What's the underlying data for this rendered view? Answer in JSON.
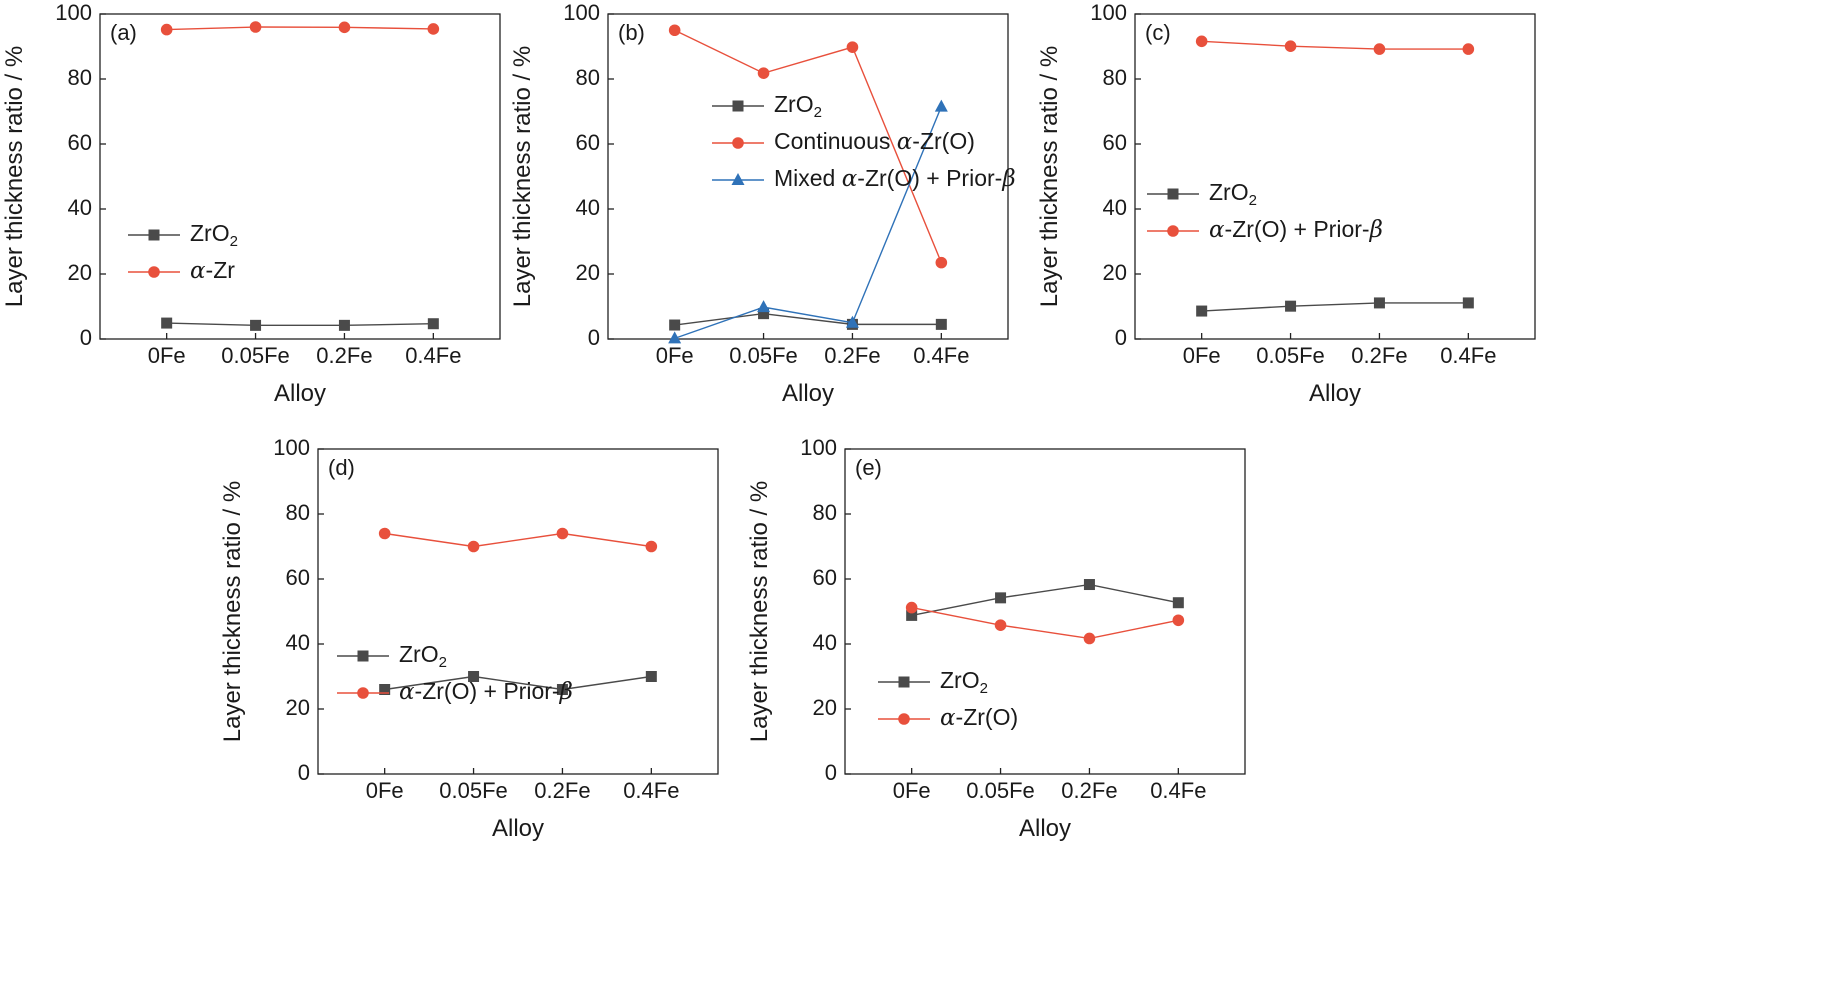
{
  "colors": {
    "zro2": "#4a4a4a",
    "red": "#e8503c",
    "blue": "#2f72b8",
    "axis": "#222222"
  },
  "chart_data": [
    {
      "type": "line",
      "tag": "(a)",
      "xlabel": "Alloy",
      "ylabel": "Layer thickness ratio / %",
      "ylim": [
        0,
        100
      ],
      "yticks": [
        "0",
        "20",
        "40",
        "60",
        "80",
        "100"
      ],
      "categories": [
        "0Fe",
        "0.05Fe",
        "0.2Fe",
        "0.4Fe"
      ],
      "legend_position": "middle-left",
      "series": [
        {
          "name": "ZrO2",
          "label_parts": [
            [
              "t",
              "ZrO"
            ],
            [
              "sub",
              "2"
            ]
          ],
          "color": "#4a4a4a",
          "marker": "square",
          "values": [
            4.9,
            4.2,
            4.2,
            4.7
          ]
        },
        {
          "name": "α-Zr",
          "label_parts": [
            [
              "g",
              "α"
            ],
            [
              "t",
              "-Zr"
            ]
          ],
          "color": "#e8503c",
          "marker": "circle",
          "values": [
            95.2,
            96.0,
            95.9,
            95.4
          ]
        }
      ]
    },
    {
      "type": "line",
      "tag": "(b)",
      "xlabel": "Alloy",
      "ylabel": "Layer thickness ratio / %",
      "ylim": [
        0,
        100
      ],
      "yticks": [
        "0",
        "20",
        "40",
        "60",
        "80",
        "100"
      ],
      "categories": [
        "0Fe",
        "0.05Fe",
        "0.2Fe",
        "0.4Fe"
      ],
      "legend_position": "middle-left",
      "series": [
        {
          "name": "ZrO2",
          "label_parts": [
            [
              "t",
              "ZrO"
            ],
            [
              "sub",
              "2"
            ]
          ],
          "color": "#4a4a4a",
          "marker": "square",
          "values": [
            4.3,
            7.8,
            4.5,
            4.5
          ]
        },
        {
          "name": "Continuous α-Zr(O)",
          "label_parts": [
            [
              "t",
              "Continuous "
            ],
            [
              "g",
              "α"
            ],
            [
              "t",
              "-Zr(O)"
            ]
          ],
          "color": "#e8503c",
          "marker": "circle",
          "values": [
            95.0,
            81.8,
            89.8,
            23.5
          ]
        },
        {
          "name": "Mixed α-Zr(O) + Prior-β",
          "label_parts": [
            [
              "t",
              "Mixed "
            ],
            [
              "g",
              "α"
            ],
            [
              "t",
              "-Zr(O) + Prior-"
            ],
            [
              "g",
              "β"
            ]
          ],
          "color": "#2f72b8",
          "marker": "triangle",
          "values": [
            0.2,
            9.8,
            5.0,
            71.5
          ]
        }
      ]
    },
    {
      "type": "line",
      "tag": "(c)",
      "xlabel": "Alloy",
      "ylabel": "Layer thickness ratio / %",
      "ylim": [
        0,
        100
      ],
      "yticks": [
        "0",
        "20",
        "40",
        "60",
        "80",
        "100"
      ],
      "categories": [
        "0Fe",
        "0.05Fe",
        "0.2Fe",
        "0.4Fe"
      ],
      "legend_position": "middle-left",
      "series": [
        {
          "name": "ZrO2",
          "label_parts": [
            [
              "t",
              "ZrO"
            ],
            [
              "sub",
              "2"
            ]
          ],
          "color": "#4a4a4a",
          "marker": "square",
          "values": [
            8.6,
            10.1,
            11.1,
            11.1
          ]
        },
        {
          "name": "α-Zr(O) + Prior-β",
          "label_parts": [
            [
              "g",
              "α"
            ],
            [
              "t",
              "-Zr(O) + Prior-"
            ],
            [
              "g",
              "β"
            ]
          ],
          "color": "#e8503c",
          "marker": "circle",
          "values": [
            91.6,
            90.1,
            89.2,
            89.2
          ]
        }
      ]
    },
    {
      "type": "line",
      "tag": "(d)",
      "xlabel": "Alloy",
      "ylabel": "Layer thickness ratio / %",
      "ylim": [
        0,
        100
      ],
      "yticks": [
        "0",
        "20",
        "40",
        "60",
        "80",
        "100"
      ],
      "categories": [
        "0Fe",
        "0.05Fe",
        "0.2Fe",
        "0.4Fe"
      ],
      "legend_position": "middle-left",
      "series": [
        {
          "name": "ZrO2",
          "label_parts": [
            [
              "t",
              "ZrO"
            ],
            [
              "sub",
              "2"
            ]
          ],
          "color": "#4a4a4a",
          "marker": "square",
          "values": [
            26.0,
            30.0,
            26.0,
            30.0
          ]
        },
        {
          "name": "α-Zr(O) + Prior-β",
          "label_parts": [
            [
              "g",
              "α"
            ],
            [
              "t",
              "-Zr(O) + Prior-"
            ],
            [
              "g",
              "β"
            ]
          ],
          "color": "#e8503c",
          "marker": "circle",
          "values": [
            74.0,
            70.0,
            74.0,
            70.0
          ]
        }
      ]
    },
    {
      "type": "line",
      "tag": "(e)",
      "xlabel": "Alloy",
      "ylabel": "Layer thickness ratio / %",
      "ylim": [
        0,
        100
      ],
      "yticks": [
        "0",
        "20",
        "40",
        "60",
        "80",
        "100"
      ],
      "categories": [
        "0Fe",
        "0.05Fe",
        "0.2Fe",
        "0.4Fe"
      ],
      "legend_position": "bottom-left",
      "series": [
        {
          "name": "ZrO2",
          "label_parts": [
            [
              "t",
              "ZrO"
            ],
            [
              "sub",
              "2"
            ]
          ],
          "color": "#4a4a4a",
          "marker": "square",
          "values": [
            48.8,
            54.2,
            58.3,
            52.7
          ]
        },
        {
          "name": "α-Zr(O)",
          "label_parts": [
            [
              "g",
              "α"
            ],
            [
              "t",
              "-Zr(O)"
            ]
          ],
          "color": "#e8503c",
          "marker": "circle",
          "values": [
            51.2,
            45.8,
            41.7,
            47.3
          ]
        }
      ]
    }
  ]
}
